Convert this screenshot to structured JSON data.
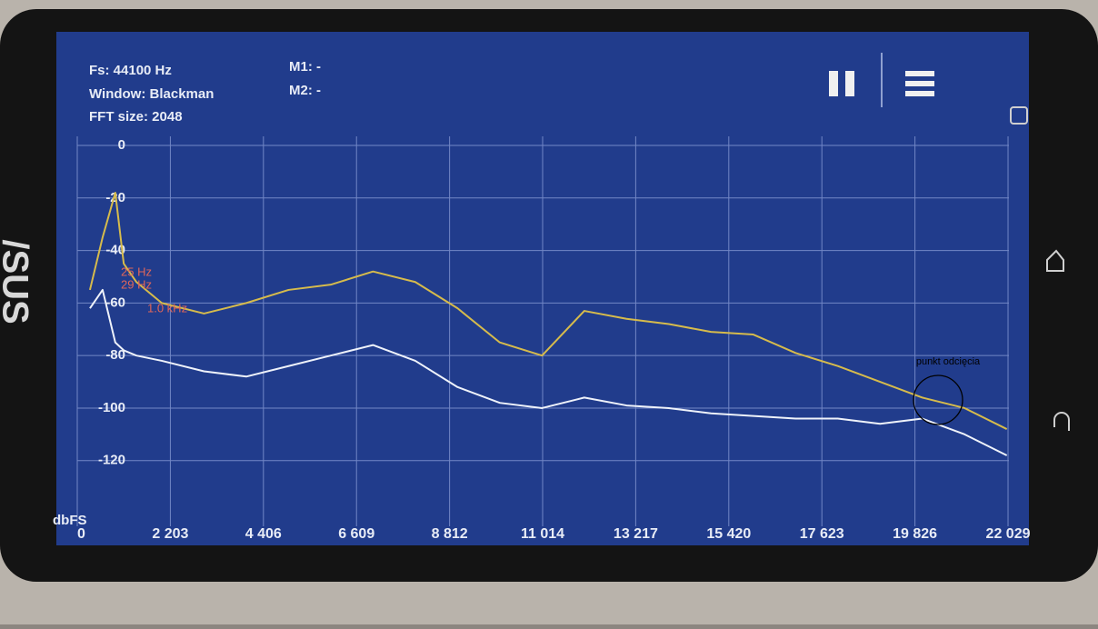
{
  "info": {
    "fs": "Fs: 44100 Hz",
    "window": "Window: Blackman",
    "fft": "FFT size: 2048",
    "m1": "M1: -",
    "m2": "M2: -"
  },
  "chart_data": {
    "type": "line",
    "y_label": "dbFS",
    "x": [
      300,
      600,
      900,
      1100,
      1400,
      2000,
      3000,
      4000,
      5000,
      6000,
      7000,
      8000,
      9000,
      10000,
      11000,
      12000,
      13000,
      14000,
      15000,
      16000,
      17000,
      18000,
      19000,
      20000,
      21000,
      22000
    ],
    "series": [
      {
        "color": "#d6bb4c",
        "values": [
          -55,
          -35,
          -18,
          -45,
          -52,
          -60,
          -64,
          -60,
          -55,
          -53,
          -48,
          -52,
          -62,
          -75,
          -80,
          -63,
          -66,
          -68,
          -71,
          -72,
          -79,
          -84,
          -90,
          -96,
          -100,
          -108
        ]
      },
      {
        "color": "#eef2fa",
        "values": [
          -62,
          -55,
          -75,
          -78,
          -80,
          -82,
          -86,
          -88,
          -84,
          -80,
          -76,
          -82,
          -92,
          -98,
          -100,
          -96,
          -99,
          -100,
          -102,
          -103,
          -104,
          -104,
          -106,
          -104,
          -110,
          -118
        ]
      }
    ],
    "xlim": [
      0,
      22050
    ],
    "xticks": [
      0,
      {
        "value": 2203,
        "label": "2 203"
      },
      {
        "value": 4406,
        "label": "4 406"
      },
      {
        "value": 6609,
        "label": "6 609"
      },
      {
        "value": 8812,
        "label": "8 812"
      },
      {
        "value": 11014,
        "label": "11 014"
      },
      {
        "value": 13217,
        "label": "13 217"
      },
      {
        "value": 15420,
        "label": "15 420"
      },
      {
        "value": 17623,
        "label": "17 623"
      },
      {
        "value": 19826,
        "label": "19 826"
      },
      {
        "value": 22029,
        "label": "22 029"
      }
    ],
    "ylim": [
      -145,
      0
    ],
    "yticks": [
      0,
      -20,
      -40,
      -60,
      -80,
      -100,
      -120
    ],
    "grid": true,
    "markers": [
      "25 Hz",
      "29 Hz",
      "1.0 kHz"
    ],
    "annotation": "punkt odcięcia"
  }
}
